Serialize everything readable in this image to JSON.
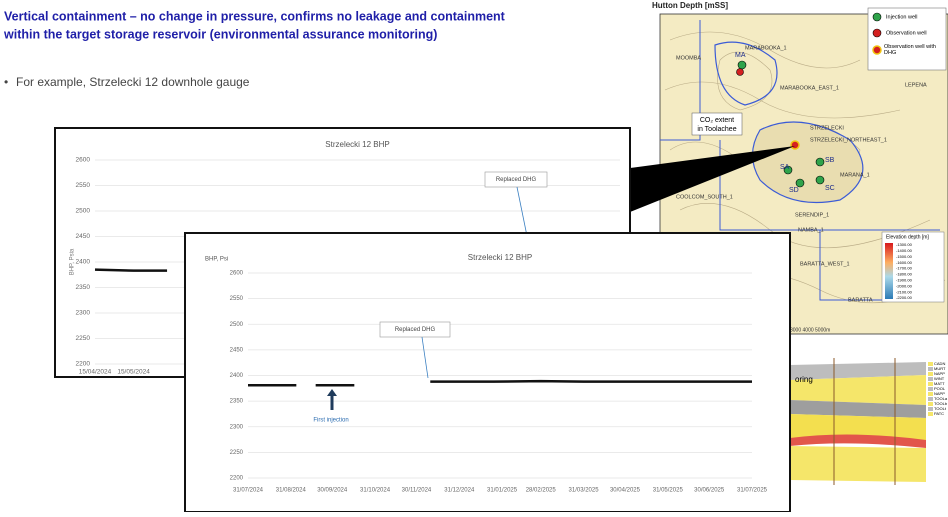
{
  "slide": {
    "title_lines": [
      "Vertical containment – no change in pressure, confirms no leakage and containment",
      "within the target storage reservoir (environmental assurance monitoring)"
    ],
    "bullet": "For example, Strzelecki 12 downhole gauge"
  },
  "chart_data": [
    {
      "type": "line",
      "title": "Strzelecki 12 BHP",
      "y_label": "BHP, Psia",
      "x": [
        "15/04/2024",
        "15/05/2024",
        "10/06/2024"
      ],
      "values": [
        2385,
        2383,
        2383
      ],
      "color": "#111111",
      "xlim": [
        "15/04/2024",
        "28/05/2025"
      ],
      "xticks": [
        "15/04/2024",
        "15/05/2024"
      ],
      "ylim": [
        2200,
        2600
      ],
      "yticks": [
        2200,
        2250,
        2300,
        2350,
        2400,
        2450,
        2500,
        2550,
        2600
      ],
      "grid": true,
      "annotations": [
        "Replaced DHG"
      ]
    },
    {
      "type": "line",
      "title": "Strzelecki 12 BHP",
      "y_label": "BHP, Psi",
      "x": [
        "31/07/2024",
        "04/09/2024",
        "10/09/2024",
        "18/09/2024",
        "16/10/2024",
        "20/11/2024",
        "10/12/2024",
        "25/01/2025",
        "28/02/2025",
        "31/03/2025",
        "31/07/2025"
      ],
      "values": [
        2381,
        2381,
        null,
        2381,
        2381,
        null,
        2388,
        2388,
        2389,
        2388,
        2388
      ],
      "color": "#111111",
      "xlim": [
        "31/07/2024",
        "31/07/2025"
      ],
      "xticks": [
        "31/07/2024",
        "31/08/2024",
        "30/09/2024",
        "31/10/2024",
        "30/11/2024",
        "31/12/2024",
        "31/01/2025",
        "28/02/2025",
        "31/03/2025",
        "30/04/2025",
        "31/05/2025",
        "30/06/2025",
        "31/07/2025"
      ],
      "ylim": [
        2200,
        2600
      ],
      "yticks": [
        2200,
        2250,
        2300,
        2350,
        2400,
        2450,
        2500,
        2550,
        2600
      ],
      "grid": true,
      "annotations": [
        "Replaced DHG",
        "First injection"
      ]
    }
  ],
  "map": {
    "title": "Hutton Depth [mSS]",
    "legend": [
      "Injection well",
      "Observation well",
      "Observation well with DHG"
    ],
    "co2_label": [
      "CO₂ extent",
      "in Toolachee"
    ],
    "wells": [
      "MA",
      "SA",
      "SB",
      "SC",
      "SD",
      "MARABOOKA_1",
      "MOOMBA",
      "MARABOOKA_EAST_1",
      "LEPENA",
      "STRZELECKI",
      "STRZELECKI_NORTHEAST_1",
      "MARANA_1",
      "COOLCOM_SOUTH_1",
      "SERENDIP_1",
      "NAMBA_1",
      "BARATTA_WEST_1",
      "BARATTA"
    ],
    "depth_title": "Elevation depth [m]",
    "depth_ticks": [
      "-1300.00",
      "-1400.00",
      "-1500.00",
      "-1600.00",
      "-1700.00",
      "-1800.00",
      "-1900.00",
      "-2000.00",
      "-2100.00",
      "-2200.00"
    ],
    "scale": "3000   4000   5000m",
    "section_label": "oring",
    "section_legend": [
      "CADN",
      "MURT",
      "NAPP",
      "WINT",
      "MATT",
      "POOL",
      "NAPP",
      "TOOLa",
      "TOOLb",
      "TOOLt",
      "PATC"
    ]
  }
}
